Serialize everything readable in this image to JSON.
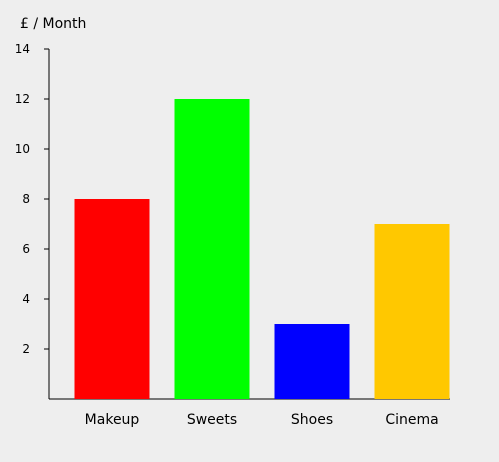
{
  "chart_data": {
    "type": "bar",
    "title": "",
    "xlabel": "",
    "ylabel": "£ / Month",
    "categories": [
      "Makeup",
      "Sweets",
      "Shoes",
      "Cinema"
    ],
    "values": [
      8,
      12,
      3,
      7
    ],
    "colors": [
      "#ff0000",
      "#00ff00",
      "#0000ff",
      "#ffc800"
    ],
    "ylim": [
      0,
      14
    ],
    "yticks": [
      2,
      4,
      6,
      8,
      10,
      12,
      14
    ],
    "grid": false,
    "legend": "none"
  }
}
